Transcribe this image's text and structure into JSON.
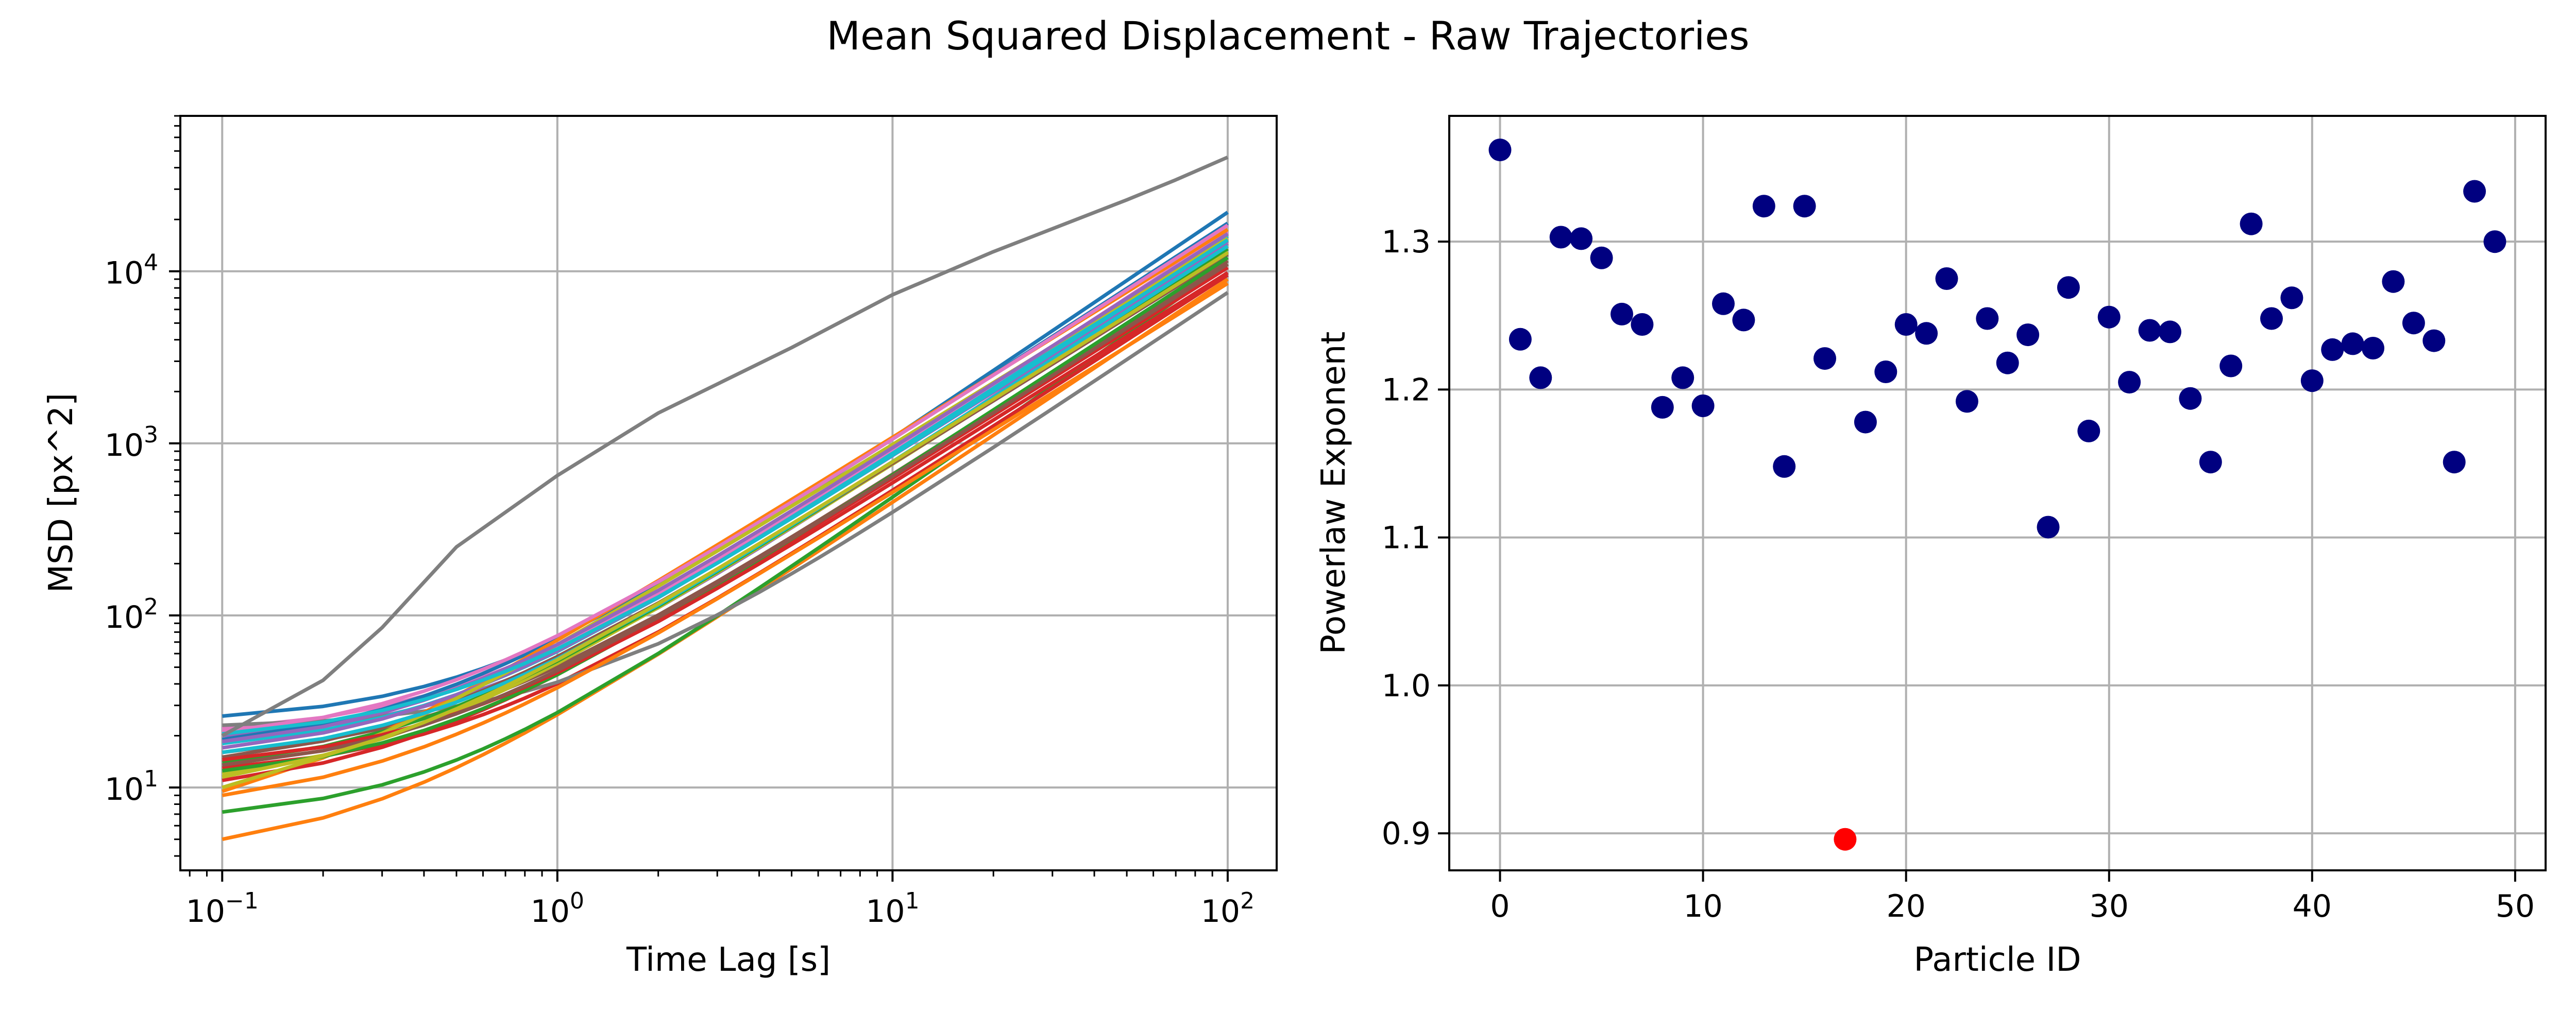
{
  "figure": {
    "suptitle": "Mean Squared Displacement - Raw Trajectories"
  },
  "chart_data": [
    {
      "type": "line",
      "xlabel": "Time Lag [s]",
      "ylabel": "MSD [px^2]",
      "xscale": "log",
      "yscale": "log",
      "xlim": [
        0.075,
        140
      ],
      "ylim": [
        3.3,
        80000
      ],
      "grid": true,
      "x_ticks": [
        0.1,
        1,
        10,
        100
      ],
      "x_tick_labels": [
        {
          "base": "10",
          "exp": "−1"
        },
        {
          "base": "10",
          "exp": "0"
        },
        {
          "base": "10",
          "exp": "1"
        },
        {
          "base": "10",
          "exp": "2"
        }
      ],
      "y_ticks": [
        10,
        100,
        1000,
        10000
      ],
      "y_tick_labels": [
        {
          "base": "10",
          "exp": "1"
        },
        {
          "base": "10",
          "exp": "2"
        },
        {
          "base": "10",
          "exp": "3"
        },
        {
          "base": "10",
          "exp": "4"
        }
      ],
      "x": [
        0.1,
        0.2,
        0.3,
        0.4,
        0.5,
        0.6,
        0.7,
        0.8,
        1,
        2,
        3,
        4,
        5,
        6,
        7,
        8,
        10,
        20,
        30,
        40,
        50,
        60,
        70,
        80,
        100
      ],
      "outlier_line": {
        "color": "#7f7f7f",
        "x": [
          0.1,
          0.2,
          0.3,
          0.5,
          1,
          2,
          5,
          10,
          20,
          50,
          70,
          100
        ],
        "y": [
          20,
          42,
          85,
          250,
          650,
          1500,
          3600,
          7300,
          13000,
          26000,
          34000,
          46000
        ]
      },
      "series": [
        {
          "color": "#1f77b4",
          "y01": 26,
          "alpha": 1.32,
          "end": 22000
        },
        {
          "color": "#ff7f0e",
          "y01": 5.0,
          "alpha": 1.3,
          "end": 9000
        },
        {
          "color": "#2ca02c",
          "y01": 7.2,
          "alpha": 1.36,
          "end": 11000
        },
        {
          "color": "#d62728",
          "y01": 13,
          "alpha": 1.26,
          "end": 9500
        },
        {
          "color": "#9467bd",
          "y01": 20,
          "alpha": 1.3,
          "end": 15000
        },
        {
          "color": "#8c564b",
          "y01": 16,
          "alpha": 1.25,
          "end": 11500
        },
        {
          "color": "#e377c2",
          "y01": 22,
          "alpha": 1.28,
          "end": 17000
        },
        {
          "color": "#7f7f7f",
          "y01": 23,
          "alpha": 1.3,
          "end": 7500
        },
        {
          "color": "#bcbd22",
          "y01": 12,
          "alpha": 1.24,
          "end": 13000
        },
        {
          "color": "#17becf",
          "y01": 18,
          "alpha": 1.27,
          "end": 16000
        },
        {
          "color": "#1f77b4",
          "y01": 19,
          "alpha": 1.26,
          "end": 19000
        },
        {
          "color": "#ff7f0e",
          "y01": 9.5,
          "alpha": 1.21,
          "end": 17500
        },
        {
          "color": "#2ca02c",
          "y01": 14,
          "alpha": 1.25,
          "end": 13500
        },
        {
          "color": "#d62728",
          "y01": 11,
          "alpha": 1.23,
          "end": 10500
        },
        {
          "color": "#9467bd",
          "y01": 17,
          "alpha": 1.24,
          "end": 14500
        },
        {
          "color": "#8c564b",
          "y01": 15,
          "alpha": 1.22,
          "end": 12500
        },
        {
          "color": "#e377c2",
          "y01": 21,
          "alpha": 1.25,
          "end": 18500
        },
        {
          "color": "#bcbd22",
          "y01": 10,
          "alpha": 1.2,
          "end": 15500
        },
        {
          "color": "#17becf",
          "y01": 16,
          "alpha": 1.26,
          "end": 14000
        },
        {
          "color": "#ff7f0e",
          "y01": 9,
          "alpha": 1.22,
          "end": 8500
        },
        {
          "color": "#2ca02c",
          "y01": 12.5,
          "alpha": 1.27,
          "end": 12000
        },
        {
          "color": "#d62728",
          "y01": 14.5,
          "alpha": 1.23,
          "end": 9800
        },
        {
          "color": "#9467bd",
          "y01": 18.5,
          "alpha": 1.25,
          "end": 16500
        },
        {
          "color": "#8c564b",
          "y01": 13.5,
          "alpha": 1.24,
          "end": 11000
        },
        {
          "color": "#bcbd22",
          "y01": 11.5,
          "alpha": 1.22,
          "end": 12800
        },
        {
          "color": "#17becf",
          "y01": 20.5,
          "alpha": 1.26,
          "end": 15200
        }
      ]
    },
    {
      "type": "scatter",
      "xlabel": "Particle ID",
      "ylabel": "Powerlaw Exponent",
      "xlim": [
        -2.5,
        51.5
      ],
      "ylim": [
        0.875,
        1.385
      ],
      "grid": true,
      "x_ticks": [
        0,
        10,
        20,
        30,
        40,
        50
      ],
      "x_tick_labels": [
        "0",
        "10",
        "20",
        "30",
        "40",
        "50"
      ],
      "y_ticks": [
        0.9,
        1.0,
        1.1,
        1.2,
        1.3
      ],
      "y_tick_labels": [
        "0.9",
        "1.0",
        "1.1",
        "1.2",
        "1.3"
      ],
      "point_color": "#000080",
      "highlight_color": "#ff0000",
      "highlight_index": 17,
      "points": [
        {
          "x": 0,
          "y": 1.362
        },
        {
          "x": 1,
          "y": 1.234
        },
        {
          "x": 2,
          "y": 1.208
        },
        {
          "x": 3,
          "y": 1.303
        },
        {
          "x": 4,
          "y": 1.302
        },
        {
          "x": 5,
          "y": 1.289
        },
        {
          "x": 6,
          "y": 1.251
        },
        {
          "x": 7,
          "y": 1.244
        },
        {
          "x": 8,
          "y": 1.188
        },
        {
          "x": 9,
          "y": 1.208
        },
        {
          "x": 10,
          "y": 1.189
        },
        {
          "x": 11,
          "y": 1.258
        },
        {
          "x": 12,
          "y": 1.247
        },
        {
          "x": 13,
          "y": 1.324
        },
        {
          "x": 14,
          "y": 1.148
        },
        {
          "x": 15,
          "y": 1.324
        },
        {
          "x": 16,
          "y": 1.221
        },
        {
          "x": 17,
          "y": 0.896
        },
        {
          "x": 18,
          "y": 1.178
        },
        {
          "x": 19,
          "y": 1.212
        },
        {
          "x": 20,
          "y": 1.244
        },
        {
          "x": 21,
          "y": 1.238
        },
        {
          "x": 22,
          "y": 1.275
        },
        {
          "x": 23,
          "y": 1.192
        },
        {
          "x": 24,
          "y": 1.248
        },
        {
          "x": 25,
          "y": 1.218
        },
        {
          "x": 26,
          "y": 1.237
        },
        {
          "x": 27,
          "y": 1.107
        },
        {
          "x": 28,
          "y": 1.269
        },
        {
          "x": 29,
          "y": 1.172
        },
        {
          "x": 30,
          "y": 1.249
        },
        {
          "x": 31,
          "y": 1.205
        },
        {
          "x": 32,
          "y": 1.24
        },
        {
          "x": 33,
          "y": 1.239
        },
        {
          "x": 34,
          "y": 1.194
        },
        {
          "x": 35,
          "y": 1.151
        },
        {
          "x": 36,
          "y": 1.216
        },
        {
          "x": 37,
          "y": 1.312
        },
        {
          "x": 38,
          "y": 1.248
        },
        {
          "x": 39,
          "y": 1.262
        },
        {
          "x": 40,
          "y": 1.206
        },
        {
          "x": 41,
          "y": 1.227
        },
        {
          "x": 42,
          "y": 1.231
        },
        {
          "x": 43,
          "y": 1.228
        },
        {
          "x": 44,
          "y": 1.273
        },
        {
          "x": 45,
          "y": 1.245
        },
        {
          "x": 46,
          "y": 1.233
        },
        {
          "x": 47,
          "y": 1.151
        },
        {
          "x": 48,
          "y": 1.334
        },
        {
          "x": 49,
          "y": 1.3
        }
      ]
    }
  ]
}
